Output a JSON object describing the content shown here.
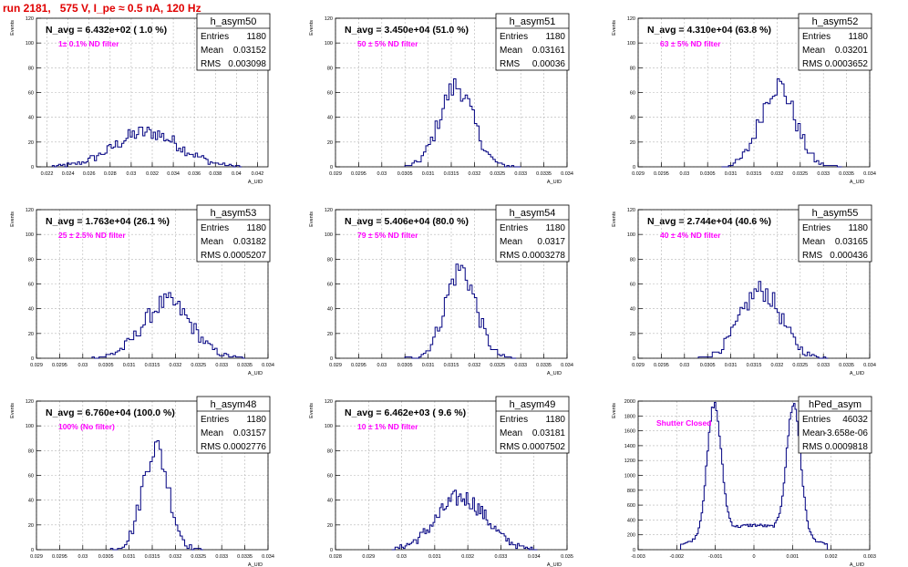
{
  "page": {
    "title": "run 2181,   575 V, I_pe ≈ 0.5 nA, 120 Hz"
  },
  "colors": {
    "histogram_line": "#000080",
    "annotation": "#ff00ff",
    "title": "#e00000",
    "grid": "#b4b4b4"
  },
  "chart_data": [
    {
      "type": "histogram",
      "name": "h_asym50",
      "ylabel": "Events",
      "xlabel": "A_UID",
      "xlim": [
        0.021,
        0.043
      ],
      "ylim": [
        0,
        120
      ],
      "xticks": [
        "0.022",
        "0.024",
        "0.026",
        "0.028",
        "0.03",
        "0.032",
        "0.034",
        "0.036",
        "0.038",
        "0.04",
        "0.042"
      ],
      "yticks": [
        "0",
        "20",
        "40",
        "60",
        "80",
        "100",
        "120"
      ],
      "stats": {
        "entries": "1180",
        "mean": "0.03152",
        "rms": "0.003098"
      },
      "stat_labels": {
        "entries": "Entries",
        "mean": "Mean",
        "rms": "RMS"
      },
      "navg": "N_avg = 6.432e+02 ( 1.0 %)",
      "annotation": "1± 0.1% ND filter",
      "dist": {
        "kind": "gauss",
        "mean": 0.03152,
        "sigma": 0.0031,
        "peak": 28,
        "start": 0.0225,
        "end": 0.0405,
        "bins": 90
      }
    },
    {
      "type": "histogram",
      "name": "h_asym51",
      "ylabel": "Events",
      "xlabel": "A_UID",
      "xlim": [
        0.029,
        0.034
      ],
      "ylim": [
        0,
        120
      ],
      "xticks": [
        "0.029",
        "0.0295",
        "0.03",
        "0.0305",
        "0.031",
        "0.0315",
        "0.032",
        "0.0325",
        "0.033",
        "0.0335",
        "0.034"
      ],
      "yticks": [
        "0",
        "20",
        "40",
        "60",
        "80",
        "100",
        "120"
      ],
      "stats": {
        "entries": "1180",
        "mean": "0.03161",
        "rms": "0.00036"
      },
      "stat_labels": {
        "entries": "Entries",
        "mean": "Mean",
        "rms": "RMS"
      },
      "navg": "N_avg = 3.450e+04 (51.0 %)",
      "annotation": "50 ± 5% ND filter",
      "dist": {
        "kind": "gauss",
        "mean": 0.03161,
        "sigma": 0.00036,
        "peak": 65,
        "start": 0.0305,
        "end": 0.033,
        "bins": 50
      }
    },
    {
      "type": "histogram",
      "name": "h_asym52",
      "ylabel": "Events",
      "xlabel": "A_UID",
      "xlim": [
        0.029,
        0.034
      ],
      "ylim": [
        0,
        120
      ],
      "xticks": [
        "0.029",
        "0.0295",
        "0.03",
        "0.0305",
        "0.031",
        "0.0315",
        "0.032",
        "0.0325",
        "0.033",
        "0.0335",
        "0.034"
      ],
      "yticks": [
        "0",
        "20",
        "40",
        "60",
        "80",
        "100",
        "120"
      ],
      "stats": {
        "entries": "1180",
        "mean": "0.03201",
        "rms": "0.0003652"
      },
      "stat_labels": {
        "entries": "Entries",
        "mean": "Mean",
        "rms": "RMS"
      },
      "navg": "N_avg = 4.310e+04 (63.8 %)",
      "annotation": "63 ± 5% ND filter",
      "dist": {
        "kind": "gauss",
        "mean": 0.03201,
        "sigma": 0.00037,
        "peak": 66,
        "start": 0.0308,
        "end": 0.0334,
        "bins": 52
      }
    },
    {
      "type": "histogram",
      "name": "h_asym53",
      "ylabel": "Events",
      "xlabel": "A_UID",
      "xlim": [
        0.029,
        0.034
      ],
      "ylim": [
        0,
        120
      ],
      "xticks": [
        "0.029",
        "0.0295",
        "0.03",
        "0.0305",
        "0.031",
        "0.0315",
        "0.032",
        "0.0325",
        "0.033",
        "0.0335",
        "0.034"
      ],
      "yticks": [
        "0",
        "20",
        "40",
        "60",
        "80",
        "100",
        "120"
      ],
      "stats": {
        "entries": "1180",
        "mean": "0.03182",
        "rms": "0.0005207"
      },
      "stat_labels": {
        "entries": "Entries",
        "mean": "Mean",
        "rms": "RMS"
      },
      "navg": "N_avg = 1.763e+04 (26.1 %)",
      "annotation": "25 ± 2.5% ND filter",
      "dist": {
        "kind": "gauss",
        "mean": 0.03182,
        "sigma": 0.00052,
        "peak": 45,
        "start": 0.0302,
        "end": 0.0335,
        "bins": 66
      }
    },
    {
      "type": "histogram",
      "name": "h_asym54",
      "ylabel": "Events",
      "xlabel": "A_UID",
      "xlim": [
        0.029,
        0.034
      ],
      "ylim": [
        0,
        120
      ],
      "xticks": [
        "0.029",
        "0.0295",
        "0.03",
        "0.0305",
        "0.031",
        "0.0315",
        "0.032",
        "0.0325",
        "0.033",
        "0.0335",
        "0.034"
      ],
      "yticks": [
        "0",
        "20",
        "40",
        "60",
        "80",
        "100",
        "120"
      ],
      "stats": {
        "entries": "1180",
        "mean": "0.0317",
        "rms": "0.0003278"
      },
      "stat_labels": {
        "entries": "Entries",
        "mean": "Mean",
        "rms": "RMS"
      },
      "navg": "N_avg = 5.406e+04 (80.0 %)",
      "annotation": "79 ± 5% ND filter",
      "dist": {
        "kind": "gauss",
        "mean": 0.0317,
        "sigma": 0.00033,
        "peak": 72,
        "start": 0.0305,
        "end": 0.0329,
        "bins": 48
      }
    },
    {
      "type": "histogram",
      "name": "h_asym55",
      "ylabel": "Events",
      "xlabel": "A_UID",
      "xlim": [
        0.029,
        0.034
      ],
      "ylim": [
        0,
        120
      ],
      "xticks": [
        "0.029",
        "0.0295",
        "0.03",
        "0.0305",
        "0.031",
        "0.0315",
        "0.032",
        "0.0325",
        "0.033",
        "0.0335",
        "0.034"
      ],
      "yticks": [
        "0",
        "20",
        "40",
        "60",
        "80",
        "100",
        "120"
      ],
      "stats": {
        "entries": "1180",
        "mean": "0.03165",
        "rms": "0.000436"
      },
      "stat_labels": {
        "entries": "Entries",
        "mean": "Mean",
        "rms": "RMS"
      },
      "navg": "N_avg = 2.744e+04 (40.6 %)",
      "annotation": "40 ± 4% ND filter",
      "dist": {
        "kind": "gauss",
        "mean": 0.03165,
        "sigma": 0.00044,
        "peak": 55,
        "start": 0.0303,
        "end": 0.0331,
        "bins": 56
      }
    },
    {
      "type": "histogram",
      "name": "h_asym48",
      "ylabel": "Events",
      "xlabel": "A_UID",
      "xlim": [
        0.029,
        0.034
      ],
      "ylim": [
        0,
        120
      ],
      "xticks": [
        "0.029",
        "0.0295",
        "0.03",
        "0.0305",
        "0.031",
        "0.0315",
        "0.032",
        "0.0325",
        "0.033",
        "0.0335",
        "0.034"
      ],
      "yticks": [
        "0",
        "20",
        "40",
        "60",
        "80",
        "100",
        "120"
      ],
      "stats": {
        "entries": "1180",
        "mean": "0.03157",
        "rms": "0.0002776"
      },
      "stat_labels": {
        "entries": "Entries",
        "mean": "Mean",
        "rms": "RMS"
      },
      "navg": "N_avg = 6.760e+04 (100.0 %)",
      "annotation": "100% (No filter)",
      "dist": {
        "kind": "gauss",
        "mean": 0.03157,
        "sigma": 0.00028,
        "peak": 83,
        "start": 0.0306,
        "end": 0.0326,
        "bins": 40
      }
    },
    {
      "type": "histogram",
      "name": "h_asym49",
      "ylabel": "Events",
      "xlabel": "A_UID",
      "xlim": [
        0.028,
        0.035
      ],
      "ylim": [
        0,
        120
      ],
      "xticks": [
        "0.028",
        "0.029",
        "0.03",
        "0.031",
        "0.032",
        "0.033",
        "0.034",
        "0.035"
      ],
      "yticks": [
        "0",
        "20",
        "40",
        "60",
        "80",
        "100",
        "120"
      ],
      "stats": {
        "entries": "1180",
        "mean": "0.03181",
        "rms": "0.0007502"
      },
      "stat_labels": {
        "entries": "Entries",
        "mean": "Mean",
        "rms": "RMS"
      },
      "navg": "N_avg = 6.462e+03 ( 9.6 %)",
      "annotation": "10 ± 1% ND filter",
      "dist": {
        "kind": "gauss",
        "mean": 0.03181,
        "sigma": 0.00075,
        "peak": 42,
        "start": 0.0297,
        "end": 0.0341,
        "bins": 88
      }
    },
    {
      "type": "histogram",
      "name": "hPed_asym",
      "ylabel": "Events",
      "xlabel": "A_UID",
      "xlim": [
        -0.003,
        0.003
      ],
      "ylim": [
        0,
        2000
      ],
      "xticks": [
        "-0.003",
        "-0.002",
        "-0.001",
        "0",
        "0.001",
        "0.002",
        "0.003"
      ],
      "yticks": [
        "0",
        "200",
        "400",
        "600",
        "800",
        "1000",
        "1200",
        "1400",
        "1600",
        "1800",
        "2000"
      ],
      "stats": {
        "entries": "46032",
        "mean": "-3.658e-06",
        "rms": "0.0009818"
      },
      "stat_labels": {
        "entries": "Entries",
        "mean": "Mean",
        "rms": "RMS"
      },
      "annotation": "Shutter Closed",
      "dist": {
        "kind": "double",
        "mu1": -0.00103,
        "mu2": 0.00103,
        "sigma": 0.00018,
        "peak": 1750,
        "valley": 330,
        "start": -0.0019,
        "end": 0.0019,
        "bins": 100
      }
    }
  ]
}
